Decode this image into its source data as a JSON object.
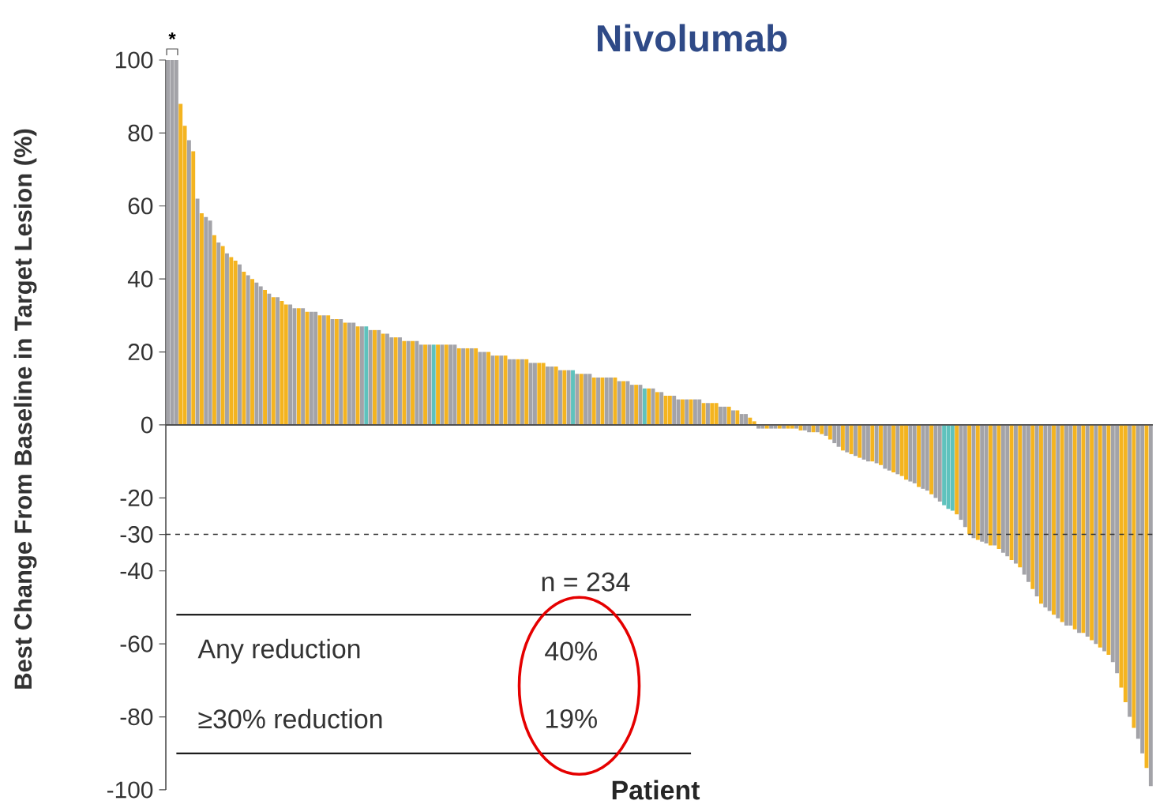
{
  "chart_data": {
    "type": "bar",
    "title": "Nivolumab",
    "ylabel": "Best Change From Baseline in Target Lesion (%)",
    "xlabel": "Patient",
    "categories": [
      null,
      null,
      null,
      null,
      null,
      null,
      null,
      null,
      null,
      null,
      null,
      null,
      null,
      null,
      null,
      null,
      null,
      null,
      null,
      null,
      null,
      null,
      null,
      null,
      null,
      null,
      null,
      null,
      null,
      null,
      null,
      null,
      null,
      null,
      null,
      null,
      null,
      null,
      null,
      null,
      null,
      null,
      null,
      null,
      null,
      null,
      null,
      null,
      null,
      null,
      null,
      null,
      null,
      null,
      null,
      null,
      null,
      null,
      null,
      null,
      null,
      null,
      null,
      null,
      null,
      null,
      null,
      null,
      null,
      null,
      null,
      null,
      null,
      null,
      null,
      null,
      null,
      null,
      null,
      null,
      null,
      null,
      null,
      null,
      null,
      null,
      null,
      null,
      null,
      null,
      null,
      null,
      null,
      null,
      null,
      null,
      null,
      null,
      null,
      null,
      null,
      null,
      null,
      null,
      null,
      null,
      null,
      null,
      null,
      null,
      null,
      null,
      null,
      null,
      null,
      null,
      null,
      null,
      null,
      null,
      null,
      null,
      null,
      null,
      null,
      null,
      null,
      null,
      null,
      null,
      null,
      null,
      null,
      null,
      null,
      null,
      null,
      null,
      null,
      null,
      null,
      null,
      null,
      null,
      null,
      null,
      null,
      null,
      null,
      null,
      null,
      null,
      null,
      null,
      null,
      null,
      null,
      null,
      null,
      null,
      null,
      null,
      null,
      null,
      null,
      null,
      null,
      null,
      null,
      null,
      null,
      null,
      null,
      null,
      null,
      null,
      null,
      null,
      null,
      null,
      null,
      null,
      null,
      null,
      null,
      null,
      null,
      null,
      null,
      null,
      null,
      null,
      null,
      null,
      null,
      null,
      null,
      null,
      null,
      null,
      null,
      null,
      null,
      null,
      null,
      null,
      null,
      null,
      null,
      null,
      null,
      null,
      null,
      null,
      null,
      null,
      null,
      null,
      null,
      null,
      null,
      null,
      null,
      null,
      null,
      null,
      null,
      null,
      null,
      null,
      null,
      null,
      null,
      null
    ],
    "values": [
      100,
      100,
      100,
      88,
      82,
      78,
      75,
      62,
      58,
      57,
      56,
      52,
      50,
      49,
      47,
      46,
      45,
      44,
      42,
      41,
      40,
      39,
      38,
      37,
      36,
      35,
      35,
      34,
      33,
      33,
      32,
      32,
      32,
      31,
      31,
      31,
      30,
      30,
      30,
      29,
      29,
      29,
      28,
      28,
      28,
      27,
      27,
      27,
      26,
      26,
      26,
      25,
      25,
      24,
      24,
      24,
      23,
      23,
      23,
      23,
      22,
      22,
      22,
      22,
      22,
      22,
      22,
      22,
      22,
      21,
      21,
      21,
      21,
      21,
      20,
      20,
      20,
      19,
      19,
      19,
      19,
      18,
      18,
      18,
      18,
      18,
      17,
      17,
      17,
      17,
      16,
      16,
      16,
      15,
      15,
      15,
      15,
      14,
      14,
      14,
      14,
      13,
      13,
      13,
      13,
      13,
      13,
      12,
      12,
      12,
      11,
      11,
      11,
      10,
      10,
      10,
      9,
      9,
      8,
      8,
      8,
      7,
      7,
      7,
      7,
      7,
      7,
      6,
      6,
      6,
      6,
      5,
      5,
      5,
      4,
      4,
      3,
      3,
      2,
      1,
      -1,
      -1,
      -1,
      -1,
      -1,
      -1,
      -1,
      -1,
      -1,
      -1,
      -1.5,
      -1.5,
      -2,
      -2,
      -2,
      -2.5,
      -3,
      -4,
      -5,
      -6,
      -7,
      -7.5,
      -8,
      -8.5,
      -9,
      -9.5,
      -10,
      -10,
      -10.5,
      -11,
      -12,
      -12.5,
      -13,
      -13.5,
      -14,
      -15,
      -15.5,
      -16,
      -17,
      -17.5,
      -18,
      -19,
      -20,
      -21,
      -22,
      -23,
      -23.5,
      -24.5,
      -26,
      -28,
      -30,
      -31,
      -31.5,
      -32,
      -32.5,
      -33,
      -33,
      -34,
      -35,
      -36,
      -37,
      -38,
      -39,
      -41,
      -43,
      -45,
      -47,
      -49,
      -50,
      -51,
      -52,
      -53,
      -54,
      -55,
      -55,
      -56,
      -57,
      -57,
      -58,
      -59,
      -60,
      -61,
      -62,
      -63,
      -65,
      -68,
      -72,
      -76,
      -80,
      -83,
      -86,
      -90,
      -94,
      -99
    ],
    "colors": [
      "#a3a3a8",
      "#a3a3a8",
      "#a3a3a8",
      "#f4b420",
      "#f4b420",
      "#a3a3a8",
      "#f4b420",
      "#a3a3a8",
      "#f4b420",
      "#a3a3a8",
      "#a3a3a8",
      "#f4b420",
      "#a3a3a8",
      "#f4b420",
      "#a3a3a8",
      "#f4b420",
      "#f4b420",
      "#a3a3a8",
      "#f4b420",
      "#a3a3a8",
      "#f4b420",
      "#a3a3a8",
      "#a3a3a8",
      "#f4b420",
      "#a3a3a8",
      "#f4b420",
      "#a3a3a8",
      "#f4b420",
      "#f4b420",
      "#a3a3a8",
      "#a3a3a8",
      "#f4b420",
      "#a3a3a8",
      "#f4b420",
      "#a3a3a8",
      "#a3a3a8",
      "#f4b420",
      "#a3a3a8",
      "#f4b420",
      "#a3a3a8",
      "#f4b420",
      "#a3a3a8",
      "#f4b420",
      "#a3a3a8",
      "#a3a3a8",
      "#f4b420",
      "#a3a3a8",
      "#5fc2bd",
      "#a3a3a8",
      "#f4b420",
      "#a3a3a8",
      "#f4b420",
      "#a3a3a8",
      "#a3a3a8",
      "#f4b420",
      "#a3a3a8",
      "#f4b420",
      "#a3a3a8",
      "#f4b420",
      "#a3a3a8",
      "#a3a3a8",
      "#f4b420",
      "#a3a3a8",
      "#5fc2bd",
      "#f4b420",
      "#a3a3a8",
      "#f4b420",
      "#a3a3a8",
      "#a3a3a8",
      "#f4b420",
      "#a3a3a8",
      "#f4b420",
      "#a3a3a8",
      "#f4b420",
      "#a3a3a8",
      "#a3a3a8",
      "#f4b420",
      "#a3a3a8",
      "#f4b420",
      "#a3a3a8",
      "#f4b420",
      "#a3a3a8",
      "#a3a3a8",
      "#f4b420",
      "#a3a3a8",
      "#f4b420",
      "#a3a3a8",
      "#a3a3a8",
      "#f4b420",
      "#f4b420",
      "#a3a3a8",
      "#a3a3a8",
      "#f4b420",
      "#a3a3a8",
      "#f4b420",
      "#a3a3a8",
      "#5fc2bd",
      "#a3a3a8",
      "#f4b420",
      "#a3a3a8",
      "#a3a3a8",
      "#f4b420",
      "#a3a3a8",
      "#f4b420",
      "#a3a3a8",
      "#a3a3a8",
      "#f4b420",
      "#a3a3a8",
      "#f4b420",
      "#a3a3a8",
      "#a3a3a8",
      "#f4b420",
      "#a3a3a8",
      "#5fc2bd",
      "#f4b420",
      "#a3a3a8",
      "#f4b420",
      "#a3a3a8",
      "#f4b420",
      "#f4b420",
      "#a3a3a8",
      "#a3a3a8",
      "#f4b420",
      "#a3a3a8",
      "#f4b420",
      "#a3a3a8",
      "#a3a3a8",
      "#f4b420",
      "#a3a3a8",
      "#f4b420",
      "#f4b420",
      "#a3a3a8",
      "#a3a3a8",
      "#f4b420",
      "#a3a3a8",
      "#f4b420",
      "#a3a3a8",
      "#a3a3a8",
      "#f4b420",
      "#f4b420",
      "#a3a3a8",
      "#a3a3a8",
      "#f4b420",
      "#a3a3a8",
      "#a3a3a8",
      "#f4b420",
      "#a3a3a8",
      "#f4b420",
      "#f4b420",
      "#a3a3a8",
      "#f4b420",
      "#a3a3a8",
      "#a3a3a8",
      "#f4b420",
      "#a3a3a8",
      "#f4b420",
      "#a3a3a8",
      "#f4b420",
      "#a3a3a8",
      "#a3a3a8",
      "#f4b420",
      "#a3a3a8",
      "#f4b420",
      "#a3a3a8",
      "#f4b420",
      "#a3a3a8",
      "#a3a3a8",
      "#f4b420",
      "#a3a3a8",
      "#f4b420",
      "#a3a3a8",
      "#a3a3a8",
      "#f4b420",
      "#a3a3a8",
      "#f4b420",
      "#f4b420",
      "#a3a3a8",
      "#a3a3a8",
      "#f4b420",
      "#a3a3a8",
      "#a3a3a8",
      "#f4b420",
      "#a3a3a8",
      "#a3a3a8",
      "#5fc2bd",
      "#5fc2bd",
      "#5fc2bd",
      "#f4b420",
      "#a3a3a8",
      "#a3a3a8",
      "#f4b420",
      "#a3a3a8",
      "#f4b420",
      "#a3a3a8",
      "#a3a3a8",
      "#f4b420",
      "#a3a3a8",
      "#f4b420",
      "#a3a3a8",
      "#a3a3a8",
      "#f4b420",
      "#a3a3a8",
      "#f4b420",
      "#a3a3a8",
      "#a3a3a8",
      "#f4b420",
      "#a3a3a8",
      "#f4b420",
      "#a3a3a8",
      "#a3a3a8",
      "#f4b420",
      "#a3a3a8",
      "#f4b420",
      "#a3a3a8",
      "#a3a3a8",
      "#f4b420",
      "#a3a3a8",
      "#f4b420",
      "#a3a3a8",
      "#f4b420",
      "#a3a3a8",
      "#f4b420",
      "#a3a3a8",
      "#f4b420",
      "#a3a3a8",
      "#a3a3a8",
      "#f4b420",
      "#f4b420",
      "#a3a3a8",
      "#f4b420",
      "#a3a3a8",
      "#a3a3a8",
      "#f4b420",
      "#a3a3a8"
    ],
    "ylim": [
      -100,
      100
    ],
    "yticks": [
      -100,
      -80,
      -60,
      -40,
      -30,
      -20,
      0,
      20,
      40,
      60,
      80,
      100
    ],
    "ref_lines": [
      {
        "axis": "y",
        "value": -30,
        "line_style": "dashed",
        "color": "#333333"
      }
    ],
    "annotations": [
      "*",
      "n = 234",
      "Any reduction",
      "40%",
      "≥30% reduction",
      "19%"
    ],
    "grid": false
  }
}
